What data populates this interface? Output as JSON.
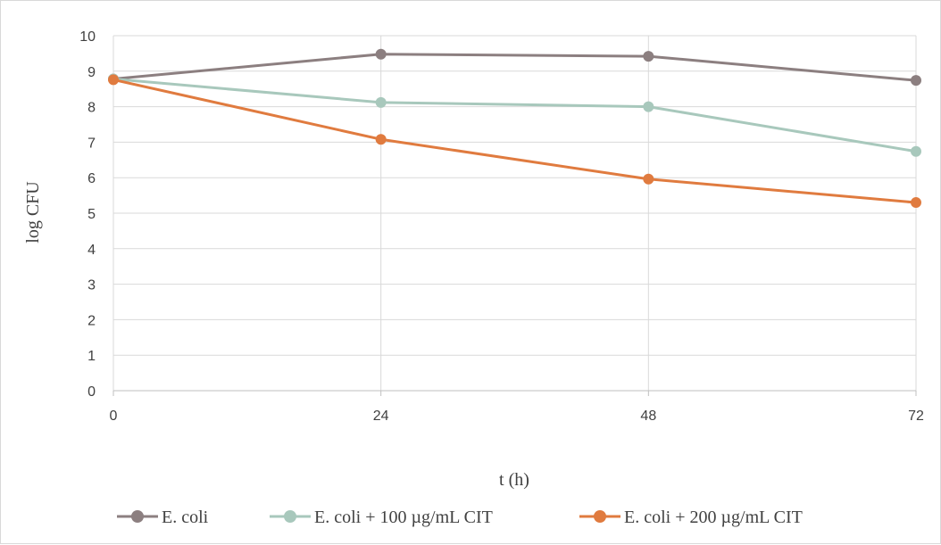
{
  "chart_data": {
    "type": "line",
    "x": [
      0,
      24,
      48,
      72
    ],
    "xlabel": "t (h)",
    "ylabel": "log CFU",
    "xlim": [
      0,
      72
    ],
    "ylim": [
      0,
      10
    ],
    "xticks": [
      "0",
      "24",
      "48",
      "72"
    ],
    "yticks": [
      "0",
      "1",
      "2",
      "3",
      "4",
      "5",
      "6",
      "7",
      "8",
      "9",
      "10"
    ],
    "grid": true,
    "legend_position": "bottom",
    "series": [
      {
        "name": "E. coli",
        "values": [
          8.78,
          9.48,
          9.42,
          8.74
        ],
        "color": "#8c7f80"
      },
      {
        "name": "E. coli + 100 µg/mL CIT",
        "values": [
          8.78,
          8.12,
          8.0,
          6.74
        ],
        "color": "#a8c8bc"
      },
      {
        "name": "E. coli + 200 µg/mL CIT",
        "values": [
          8.76,
          7.08,
          5.96,
          5.3
        ],
        "color": "#e07b3f"
      }
    ]
  }
}
